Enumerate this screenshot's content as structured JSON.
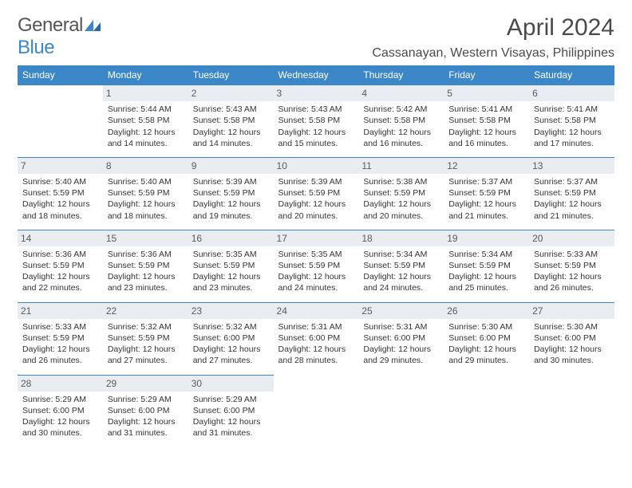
{
  "logo": {
    "text_general": "General",
    "text_blue": "Blue"
  },
  "title": "April 2024",
  "location": "Cassanayan, Western Visayas, Philippines",
  "header_bg": "#3c87c7",
  "daynum_bg": "#e9edf1",
  "weekdays": [
    "Sunday",
    "Monday",
    "Tuesday",
    "Wednesday",
    "Thursday",
    "Friday",
    "Saturday"
  ],
  "weeks": [
    [
      null,
      {
        "n": "1",
        "sr": "Sunrise: 5:44 AM",
        "ss": "Sunset: 5:58 PM",
        "dl1": "Daylight: 12 hours",
        "dl2": "and 14 minutes."
      },
      {
        "n": "2",
        "sr": "Sunrise: 5:43 AM",
        "ss": "Sunset: 5:58 PM",
        "dl1": "Daylight: 12 hours",
        "dl2": "and 14 minutes."
      },
      {
        "n": "3",
        "sr": "Sunrise: 5:43 AM",
        "ss": "Sunset: 5:58 PM",
        "dl1": "Daylight: 12 hours",
        "dl2": "and 15 minutes."
      },
      {
        "n": "4",
        "sr": "Sunrise: 5:42 AM",
        "ss": "Sunset: 5:58 PM",
        "dl1": "Daylight: 12 hours",
        "dl2": "and 16 minutes."
      },
      {
        "n": "5",
        "sr": "Sunrise: 5:41 AM",
        "ss": "Sunset: 5:58 PM",
        "dl1": "Daylight: 12 hours",
        "dl2": "and 16 minutes."
      },
      {
        "n": "6",
        "sr": "Sunrise: 5:41 AM",
        "ss": "Sunset: 5:58 PM",
        "dl1": "Daylight: 12 hours",
        "dl2": "and 17 minutes."
      }
    ],
    [
      {
        "n": "7",
        "sr": "Sunrise: 5:40 AM",
        "ss": "Sunset: 5:59 PM",
        "dl1": "Daylight: 12 hours",
        "dl2": "and 18 minutes."
      },
      {
        "n": "8",
        "sr": "Sunrise: 5:40 AM",
        "ss": "Sunset: 5:59 PM",
        "dl1": "Daylight: 12 hours",
        "dl2": "and 18 minutes."
      },
      {
        "n": "9",
        "sr": "Sunrise: 5:39 AM",
        "ss": "Sunset: 5:59 PM",
        "dl1": "Daylight: 12 hours",
        "dl2": "and 19 minutes."
      },
      {
        "n": "10",
        "sr": "Sunrise: 5:39 AM",
        "ss": "Sunset: 5:59 PM",
        "dl1": "Daylight: 12 hours",
        "dl2": "and 20 minutes."
      },
      {
        "n": "11",
        "sr": "Sunrise: 5:38 AM",
        "ss": "Sunset: 5:59 PM",
        "dl1": "Daylight: 12 hours",
        "dl2": "and 20 minutes."
      },
      {
        "n": "12",
        "sr": "Sunrise: 5:37 AM",
        "ss": "Sunset: 5:59 PM",
        "dl1": "Daylight: 12 hours",
        "dl2": "and 21 minutes."
      },
      {
        "n": "13",
        "sr": "Sunrise: 5:37 AM",
        "ss": "Sunset: 5:59 PM",
        "dl1": "Daylight: 12 hours",
        "dl2": "and 21 minutes."
      }
    ],
    [
      {
        "n": "14",
        "sr": "Sunrise: 5:36 AM",
        "ss": "Sunset: 5:59 PM",
        "dl1": "Daylight: 12 hours",
        "dl2": "and 22 minutes."
      },
      {
        "n": "15",
        "sr": "Sunrise: 5:36 AM",
        "ss": "Sunset: 5:59 PM",
        "dl1": "Daylight: 12 hours",
        "dl2": "and 23 minutes."
      },
      {
        "n": "16",
        "sr": "Sunrise: 5:35 AM",
        "ss": "Sunset: 5:59 PM",
        "dl1": "Daylight: 12 hours",
        "dl2": "and 23 minutes."
      },
      {
        "n": "17",
        "sr": "Sunrise: 5:35 AM",
        "ss": "Sunset: 5:59 PM",
        "dl1": "Daylight: 12 hours",
        "dl2": "and 24 minutes."
      },
      {
        "n": "18",
        "sr": "Sunrise: 5:34 AM",
        "ss": "Sunset: 5:59 PM",
        "dl1": "Daylight: 12 hours",
        "dl2": "and 24 minutes."
      },
      {
        "n": "19",
        "sr": "Sunrise: 5:34 AM",
        "ss": "Sunset: 5:59 PM",
        "dl1": "Daylight: 12 hours",
        "dl2": "and 25 minutes."
      },
      {
        "n": "20",
        "sr": "Sunrise: 5:33 AM",
        "ss": "Sunset: 5:59 PM",
        "dl1": "Daylight: 12 hours",
        "dl2": "and 26 minutes."
      }
    ],
    [
      {
        "n": "21",
        "sr": "Sunrise: 5:33 AM",
        "ss": "Sunset: 5:59 PM",
        "dl1": "Daylight: 12 hours",
        "dl2": "and 26 minutes."
      },
      {
        "n": "22",
        "sr": "Sunrise: 5:32 AM",
        "ss": "Sunset: 5:59 PM",
        "dl1": "Daylight: 12 hours",
        "dl2": "and 27 minutes."
      },
      {
        "n": "23",
        "sr": "Sunrise: 5:32 AM",
        "ss": "Sunset: 6:00 PM",
        "dl1": "Daylight: 12 hours",
        "dl2": "and 27 minutes."
      },
      {
        "n": "24",
        "sr": "Sunrise: 5:31 AM",
        "ss": "Sunset: 6:00 PM",
        "dl1": "Daylight: 12 hours",
        "dl2": "and 28 minutes."
      },
      {
        "n": "25",
        "sr": "Sunrise: 5:31 AM",
        "ss": "Sunset: 6:00 PM",
        "dl1": "Daylight: 12 hours",
        "dl2": "and 29 minutes."
      },
      {
        "n": "26",
        "sr": "Sunrise: 5:30 AM",
        "ss": "Sunset: 6:00 PM",
        "dl1": "Daylight: 12 hours",
        "dl2": "and 29 minutes."
      },
      {
        "n": "27",
        "sr": "Sunrise: 5:30 AM",
        "ss": "Sunset: 6:00 PM",
        "dl1": "Daylight: 12 hours",
        "dl2": "and 30 minutes."
      }
    ],
    [
      {
        "n": "28",
        "sr": "Sunrise: 5:29 AM",
        "ss": "Sunset: 6:00 PM",
        "dl1": "Daylight: 12 hours",
        "dl2": "and 30 minutes."
      },
      {
        "n": "29",
        "sr": "Sunrise: 5:29 AM",
        "ss": "Sunset: 6:00 PM",
        "dl1": "Daylight: 12 hours",
        "dl2": "and 31 minutes."
      },
      {
        "n": "30",
        "sr": "Sunrise: 5:29 AM",
        "ss": "Sunset: 6:00 PM",
        "dl1": "Daylight: 12 hours",
        "dl2": "and 31 minutes."
      },
      null,
      null,
      null,
      null
    ]
  ]
}
